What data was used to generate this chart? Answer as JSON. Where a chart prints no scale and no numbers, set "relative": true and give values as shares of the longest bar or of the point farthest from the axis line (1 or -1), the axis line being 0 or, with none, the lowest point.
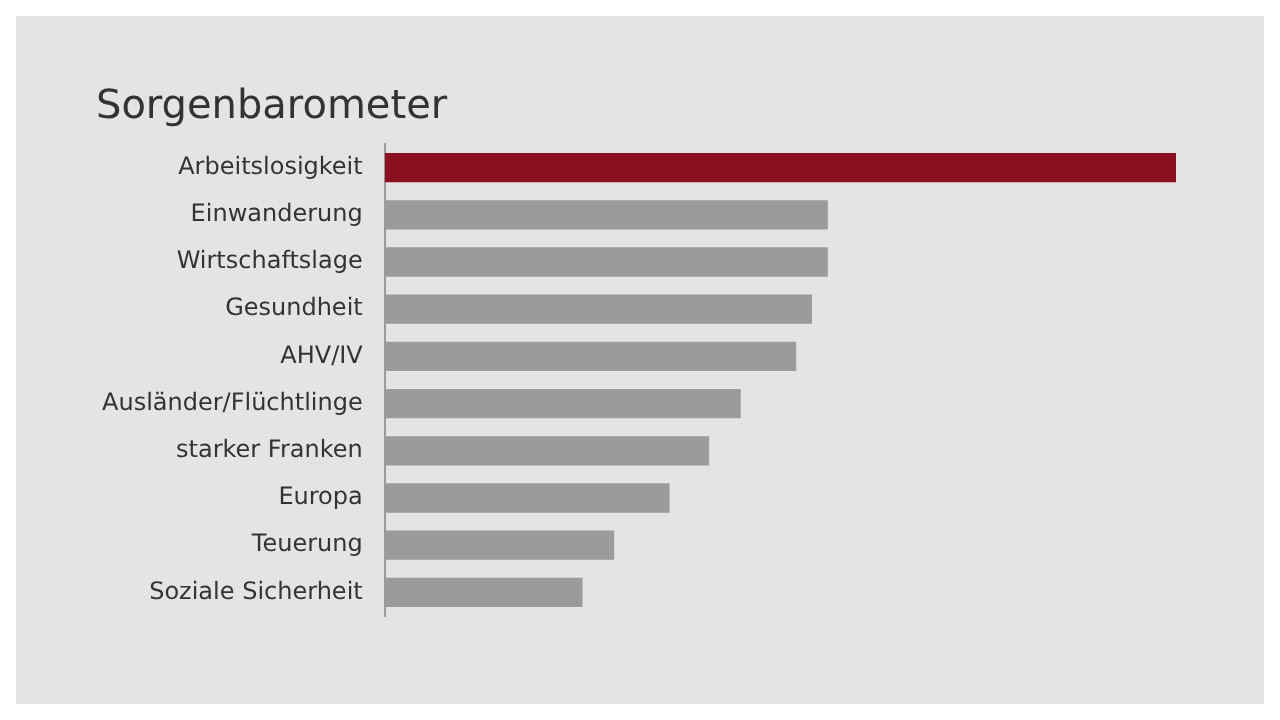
{
  "chart_data": {
    "type": "bar",
    "orientation": "horizontal",
    "relative": true,
    "title": "Sorgenbarometer",
    "categories": [
      "Arbeitslosigkeit",
      "Einwanderung",
      "Wirtschaftslage",
      "Gesundheit",
      "AHV/IV",
      "Ausländer/Flüchtlinge",
      "starker Franken",
      "Europa",
      "Teuerung",
      "Soziale Sicherheit"
    ],
    "values": [
      1,
      0.56,
      0.56,
      0.54,
      0.52,
      0.45,
      0.41,
      0.36,
      0.29,
      0.25
    ],
    "colors": [
      "#8b1022",
      "#9b9b9b",
      "#9b9b9b",
      "#9b9b9b",
      "#9b9b9b",
      "#9b9b9b",
      "#9b9b9b",
      "#9b9b9b",
      "#9b9b9b",
      "#9b9b9b"
    ],
    "legend": false
  }
}
